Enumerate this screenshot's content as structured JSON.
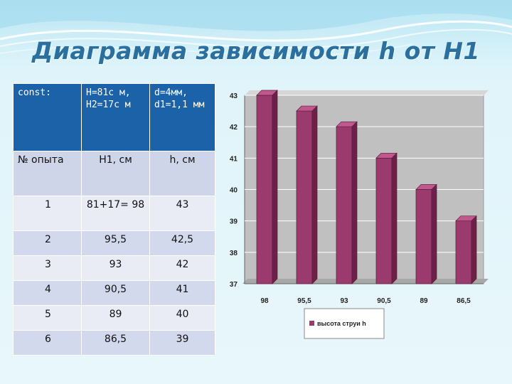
{
  "title": "Диаграмма  зависимости  h от H1",
  "table": {
    "header": [
      "const:",
      "H=81c м, H2=17c м",
      "d=4мм, d1=1,1 мм"
    ],
    "subheader": [
      "№ опыта",
      "H1, см",
      "h, см"
    ],
    "rows": [
      [
        "1",
        "81+17= 98",
        "43"
      ],
      [
        "2",
        "95,5",
        "42,5"
      ],
      [
        "3",
        "93",
        "42"
      ],
      [
        "4",
        "90,5",
        "41"
      ],
      [
        "5",
        "89",
        "40"
      ],
      [
        "6",
        "86,5",
        "39"
      ]
    ]
  },
  "chart_data": {
    "type": "bar",
    "title": "",
    "xlabel": "",
    "ylabel": "",
    "categories": [
      "98",
      "95,5",
      "93",
      "90,5",
      "89",
      "86,5"
    ],
    "series": [
      {
        "name": "высота струи h",
        "values": [
          43,
          42.5,
          42,
          41,
          40,
          39
        ]
      }
    ],
    "ylim": [
      37,
      43
    ],
    "yticks": [
      37,
      38,
      39,
      40,
      41,
      42,
      43
    ],
    "grid": true,
    "legend": "bottom",
    "bar_color": "#9b3a6c",
    "plot_bg": "#c0c0c0"
  }
}
